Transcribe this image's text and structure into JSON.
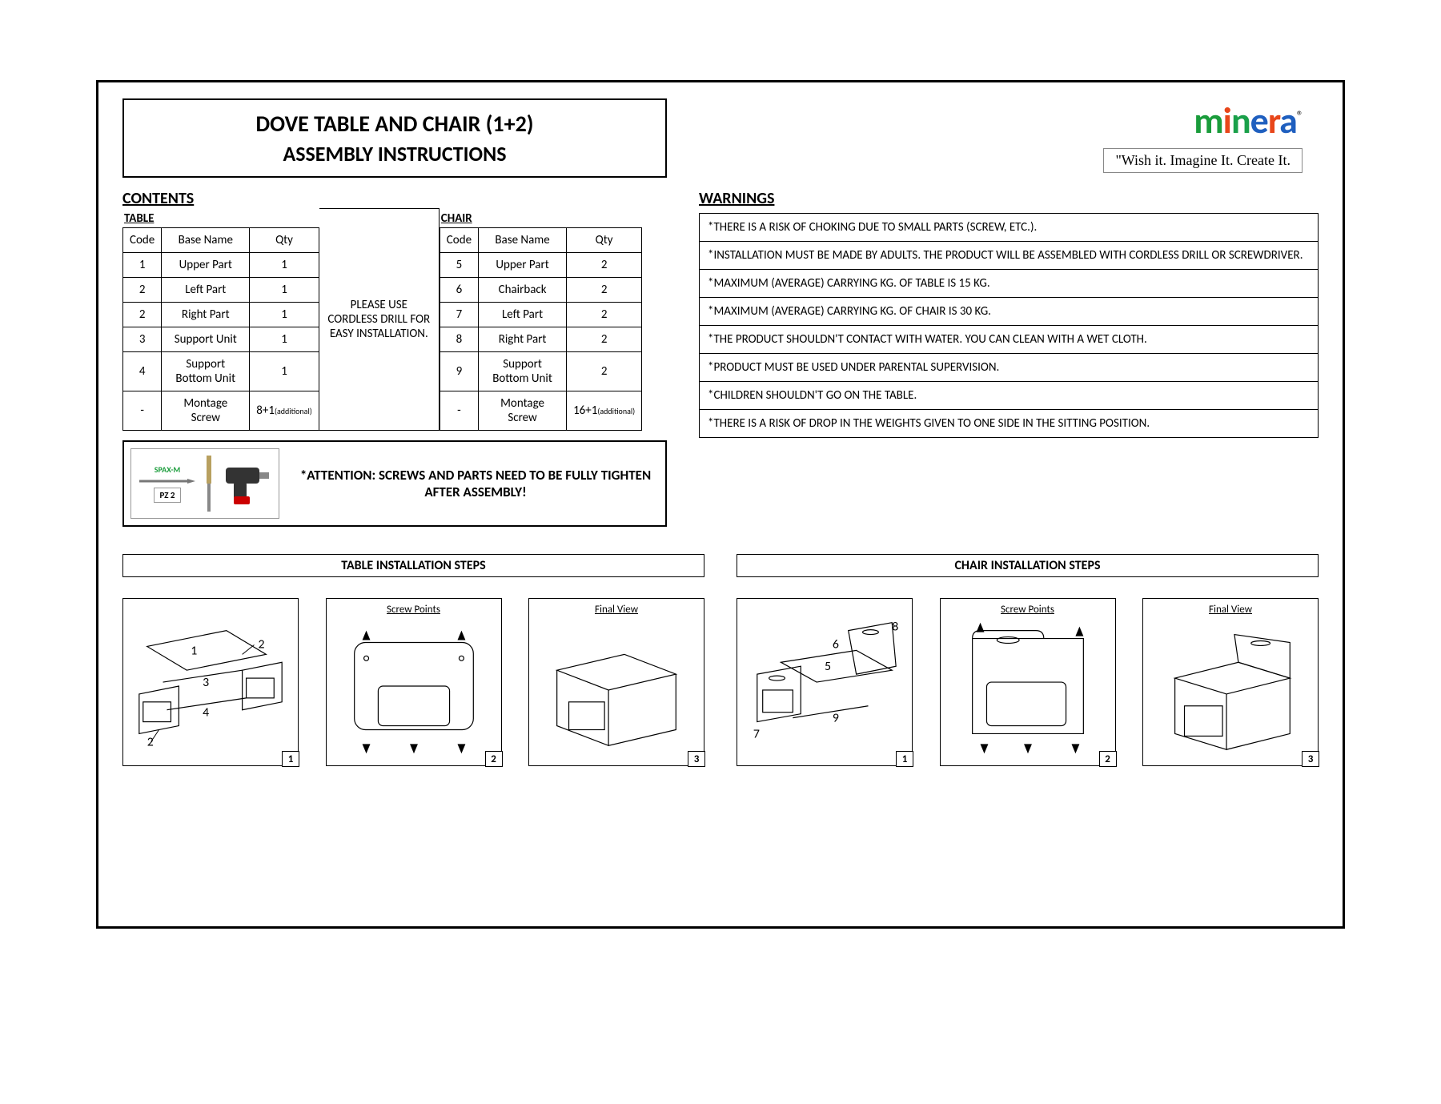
{
  "title": {
    "line1": "DOVE TABLE AND CHAIR (1+2)",
    "line2": "ASSEMBLY INSTRUCTIONS"
  },
  "logo": {
    "text": "minera",
    "reg": "®",
    "colors": [
      "#1a9c3b",
      "#e8461a",
      "#1aa04a",
      "#1f5fbf",
      "#e8461a",
      "#1f5fbf"
    ],
    "tagline": "\"Wish it. Imagine It. Create It."
  },
  "contents_title": "CONTENTS",
  "table_sub": "TABLE",
  "chair_sub": "CHAIR",
  "headers": {
    "code": "Code",
    "name": "Base Name",
    "qty": "Qty"
  },
  "table_parts": [
    {
      "code": "1",
      "name": "Upper Part",
      "qty": "1"
    },
    {
      "code": "2",
      "name": "Left Part",
      "qty": "1"
    },
    {
      "code": "2",
      "name": "Right Part",
      "qty": "1"
    },
    {
      "code": "3",
      "name": "Support Unit",
      "qty": "1"
    },
    {
      "code": "4",
      "name": "Support Bottom Unit",
      "qty": "1"
    },
    {
      "code": "-",
      "name": "Montage Screw",
      "qty": "8+1",
      "qty_note": "(additional)"
    }
  ],
  "chair_parts": [
    {
      "code": "5",
      "name": "Upper Part",
      "qty": "2"
    },
    {
      "code": "6",
      "name": "Chairback",
      "qty": "2"
    },
    {
      "code": "7",
      "name": "Left Part",
      "qty": "2"
    },
    {
      "code": "8",
      "name": "Right Part",
      "qty": "2"
    },
    {
      "code": "9",
      "name": "Support Bottom Unit",
      "qty": "2"
    },
    {
      "code": "-",
      "name": "Montage Screw",
      "qty": "16+1",
      "qty_note": "(additional)"
    }
  ],
  "drill_note": "PLEASE USE CORDLESS DRILL FOR EASY INSTALLATION.",
  "tools": {
    "brand": "SPAX-M",
    "bit": "PZ 2"
  },
  "attention": "*ATTENTION: SCREWS AND PARTS NEED TO BE FULLY TIGHTEN AFTER ASSEMBLY!",
  "warnings_title": "WARNINGS",
  "warnings": [
    "*THERE IS A RISK OF CHOKING DUE TO SMALL PARTS (SCREW, ETC.).",
    "*INSTALLATION MUST BE MADE BY ADULTS. THE PRODUCT WILL BE ASSEMBLED WITH CORDLESS DRILL OR SCREWDRIVER.",
    "*MAXIMUM (AVERAGE) CARRYING KG. OF TABLE IS 15 KG.",
    "*MAXIMUM (AVERAGE) CARRYING KG. OF CHAIR IS 30 KG.",
    "*THE PRODUCT SHOULDN'T CONTACT WITH WATER. YOU CAN CLEAN WITH A WET CLOTH.",
    "*PRODUCT MUST BE USED UNDER PARENTAL SUPERVISION.",
    "*CHILDREN SHOULDN'T GO ON THE TABLE.",
    "*THERE IS A RISK OF DROP IN THE WEIGHTS GIVEN TO ONE SIDE IN THE SITTING POSITION."
  ],
  "steps": {
    "table_title": "TABLE INSTALLATION STEPS",
    "chair_title": "CHAIR INSTALLATION STEPS",
    "labels": {
      "screw": "Screw Points",
      "final": "Final View"
    },
    "table_part_nums": [
      "1",
      "2",
      "3",
      "4",
      "2"
    ],
    "chair_part_nums": [
      "5",
      "6",
      "7",
      "8",
      "9"
    ]
  }
}
